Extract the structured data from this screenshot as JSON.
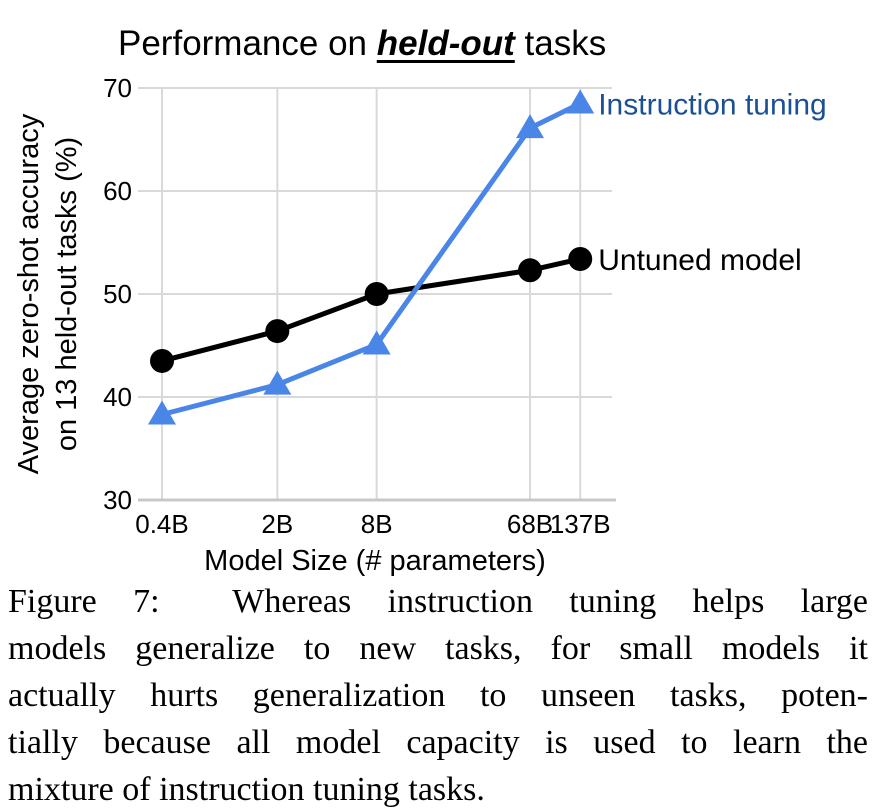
{
  "figure": {
    "title": {
      "prefix": "Performance on ",
      "emphasis": "held-out",
      "suffix": " tasks"
    }
  },
  "chart_data": {
    "type": "line",
    "title": "Performance on held-out tasks",
    "x": [
      0.4,
      2,
      8,
      68,
      137
    ],
    "x_scale": "log",
    "x_tick_labels": [
      "0.4B",
      "2B",
      "8B",
      "68B",
      "137B"
    ],
    "xlabel": "Model Size (# parameters)",
    "ylabel_lines": [
      "Average zero-shot accuracy",
      "on 13 held-out tasks (%)"
    ],
    "ylim": [
      30,
      70
    ],
    "y_ticks": [
      30,
      40,
      50,
      60,
      70
    ],
    "grid": true,
    "grid_color": "#d9d9d9",
    "axis_line_color": "#c8c8c8",
    "legend_position": "inline-right-of-last-point",
    "series": [
      {
        "name": "Untuned model",
        "marker": "circle",
        "color": "#000000",
        "label_color": "#000000",
        "values": [
          43.5,
          46.4,
          50.0,
          52.3,
          53.4
        ]
      },
      {
        "name": "Instruction tuning",
        "marker": "triangle",
        "color": "#4a86e8",
        "label_color": "#1c5096",
        "values": [
          38.3,
          41.2,
          45.1,
          66.1,
          68.5
        ]
      }
    ]
  },
  "caption": {
    "lines": [
      "Figure 7:  Whereas instruction tuning helps large",
      "models generalize to new tasks, for small models it",
      "actually hurts generalization to unseen tasks, poten-",
      "tially because all model capacity is used to learn the",
      "mixture of instruction tuning tasks."
    ]
  }
}
